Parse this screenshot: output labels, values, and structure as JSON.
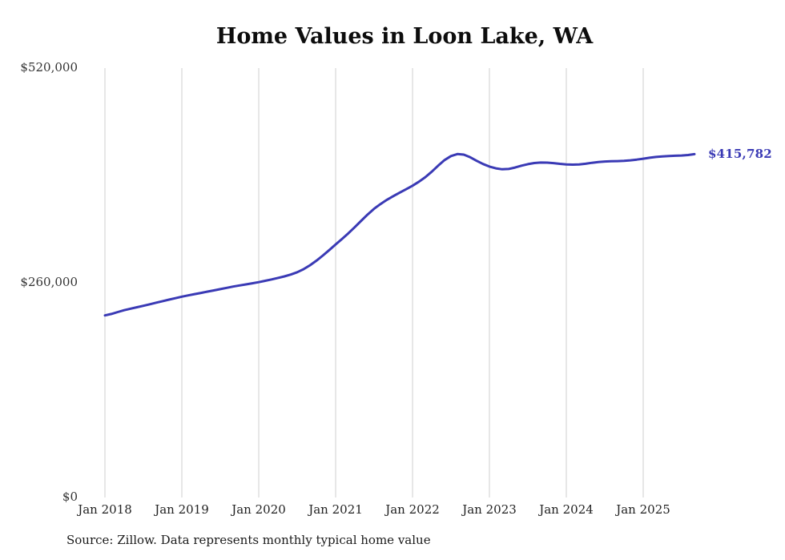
{
  "page": {
    "source_note": "Source: Zillow. Data represents monthly typical home value"
  },
  "chart_data": {
    "type": "line",
    "title": "Home Values in Loon Lake, WA",
    "series_name": "Monthly typical home value",
    "ylim": [
      0,
      520000
    ],
    "grid": "vertical",
    "legend": "none",
    "line_color": "#3a3ab5",
    "grid_color": "#cfcfcf",
    "end_label": "$415,782",
    "yticks": [
      {
        "label": "$520,000",
        "value": 520000
      },
      {
        "label": "$260,000",
        "value": 260000
      },
      {
        "label": "$0",
        "value": 0
      }
    ],
    "xticks": [
      "Jan 2018",
      "Jan 2019",
      "Jan 2020",
      "Jan 2021",
      "Jan 2022",
      "Jan 2023",
      "Jan 2024",
      "Jan 2025"
    ],
    "x": [
      "2018-01",
      "2018-02",
      "2018-03",
      "2018-04",
      "2018-05",
      "2018-06",
      "2018-07",
      "2018-08",
      "2018-09",
      "2018-10",
      "2018-11",
      "2018-12",
      "2019-01",
      "2019-02",
      "2019-03",
      "2019-04",
      "2019-05",
      "2019-06",
      "2019-07",
      "2019-08",
      "2019-09",
      "2019-10",
      "2019-11",
      "2019-12",
      "2020-01",
      "2020-02",
      "2020-03",
      "2020-04",
      "2020-05",
      "2020-06",
      "2020-07",
      "2020-08",
      "2020-09",
      "2020-10",
      "2020-11",
      "2020-12",
      "2021-01",
      "2021-02",
      "2021-03",
      "2021-04",
      "2021-05",
      "2021-06",
      "2021-07",
      "2021-08",
      "2021-09",
      "2021-10",
      "2021-11",
      "2021-12",
      "2022-01",
      "2022-02",
      "2022-03",
      "2022-04",
      "2022-05",
      "2022-06",
      "2022-07",
      "2022-08",
      "2022-09",
      "2022-10",
      "2022-11",
      "2022-12",
      "2023-01",
      "2023-02",
      "2023-03",
      "2023-04",
      "2023-05",
      "2023-06",
      "2023-07",
      "2023-08",
      "2023-09",
      "2023-10",
      "2023-11",
      "2023-12",
      "2024-01",
      "2024-02",
      "2024-03",
      "2024-04",
      "2024-05",
      "2024-06",
      "2024-07",
      "2024-08",
      "2024-09",
      "2024-10",
      "2024-11",
      "2024-12",
      "2025-01",
      "2025-02",
      "2025-03",
      "2025-04",
      "2025-05",
      "2025-06",
      "2025-07",
      "2025-08",
      "2025-09"
    ],
    "values": [
      220500,
      222300,
      224600,
      226800,
      228700,
      230400,
      232200,
      234000,
      235900,
      237800,
      239600,
      241400,
      243200,
      244800,
      246300,
      247800,
      249300,
      250800,
      252300,
      253900,
      255400,
      256800,
      258100,
      259400,
      260800,
      262400,
      264100,
      265900,
      267800,
      270000,
      272800,
      276500,
      281200,
      286800,
      293000,
      299600,
      306500,
      313200,
      320100,
      327500,
      335200,
      342800,
      349600,
      355400,
      360500,
      365000,
      369200,
      373300,
      377600,
      382400,
      388000,
      394600,
      401800,
      408600,
      413500,
      415900,
      415200,
      412000,
      407800,
      403900,
      400800,
      398600,
      397500,
      397900,
      399600,
      401800,
      403700,
      405000,
      405600,
      405500,
      404900,
      404100,
      403400,
      403100,
      403400,
      404200,
      405300,
      406300,
      406900,
      407200,
      407400,
      407700,
      408300,
      409200,
      410300,
      411400,
      412400,
      413100,
      413600,
      413900,
      414200,
      414700,
      415782
    ]
  }
}
